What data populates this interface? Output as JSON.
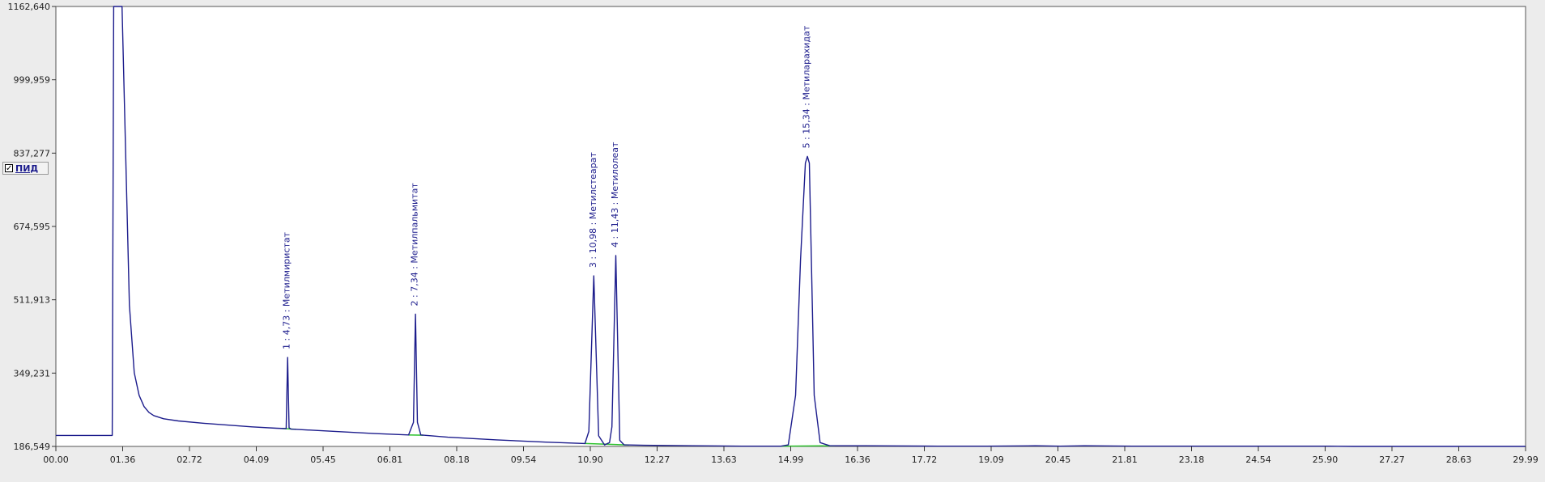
{
  "chart_data": {
    "type": "line",
    "title": "",
    "xlabel": "",
    "ylabel": "",
    "xlim": [
      0,
      30
    ],
    "ylim": [
      186.549,
      1162.64
    ],
    "x_tick_labels": [
      "00.00",
      "01.36",
      "02.72",
      "04.09",
      "05.45",
      "06.81",
      "08.18",
      "09.54",
      "10.90",
      "12.27",
      "13.63",
      "14.99",
      "16.36",
      "17.72",
      "19.09",
      "20.45",
      "21.81",
      "23.18",
      "24.54",
      "25.90",
      "27.27",
      "28.63",
      "29.99"
    ],
    "y_tick_labels": [
      "186,549",
      "349,231",
      "511,913",
      "674,595",
      "837,277",
      "999,959",
      "1162,640"
    ],
    "grid": false,
    "legend": {
      "position": "left",
      "label": "ПИД",
      "checked": true
    },
    "colors": {
      "signal": "#1c1c8c",
      "baseline": "#2dc12d",
      "label": "#1c1c8c",
      "plot_bg": "#ffffff",
      "page_bg": "#ececec"
    },
    "series": [
      {
        "name": "ПИД",
        "x": [
          0,
          1.15,
          1.18,
          1.2,
          1.35,
          1.5,
          1.6,
          1.7,
          1.8,
          1.9,
          2.0,
          2.2,
          2.5,
          3.0,
          3.5,
          4.0,
          4.5,
          4.7,
          4.73,
          4.76,
          4.8,
          5.5,
          6.5,
          7.2,
          7.3,
          7.34,
          7.38,
          7.45,
          8.0,
          9.0,
          10.0,
          10.8,
          10.88,
          10.98,
          11.08,
          11.2,
          11.3,
          11.35,
          11.43,
          11.51,
          11.6,
          12.0,
          13.0,
          14.0,
          14.8,
          14.95,
          15.1,
          15.2,
          15.3,
          15.34,
          15.38,
          15.48,
          15.6,
          15.8,
          16.5,
          18.0,
          19.0,
          20.0,
          20.5,
          21.0,
          22.0,
          24.0,
          26.0,
          26.5,
          27.0,
          28.0,
          29.0,
          30.0
        ],
        "y": [
          211,
          211,
          1162.64,
          1162.64,
          1162.64,
          500,
          350,
          300,
          275,
          262,
          255,
          248,
          243,
          238,
          234,
          230,
          227,
          226,
          384,
          228,
          225,
          221,
          215,
          212,
          240,
          480,
          240,
          212,
          207,
          201,
          196,
          193,
          220,
          565,
          210,
          190,
          195,
          230,
          610,
          200,
          190,
          189,
          188,
          187,
          187,
          190,
          300,
          600,
          815,
          830,
          815,
          300,
          195,
          188,
          188,
          187,
          187,
          188,
          187,
          188,
          187,
          187,
          187,
          186.6,
          186.549,
          186.549,
          186.549,
          186.549
        ]
      }
    ],
    "peak_labels": [
      {
        "text": "1 : 4,73 : Метилмиристат",
        "x": 4.73,
        "y": 384
      },
      {
        "text": "2 : 7,34 : Метилпальмитат",
        "x": 7.34,
        "y": 480
      },
      {
        "text": "3 : 10,98 : Метилстеарат",
        "x": 10.98,
        "y": 565
      },
      {
        "text": "4 : 11,43 : Метилолеат",
        "x": 11.43,
        "y": 610
      },
      {
        "text": "5 : 15,34 : Метиларахидат",
        "x": 15.34,
        "y": 830
      }
    ],
    "baselines": [
      {
        "x": [
          4.6,
          4.9
        ]
      },
      {
        "x": [
          7.2,
          7.5
        ]
      },
      {
        "x": [
          10.8,
          11.7
        ]
      },
      {
        "x": [
          14.8,
          15.9
        ]
      }
    ]
  }
}
